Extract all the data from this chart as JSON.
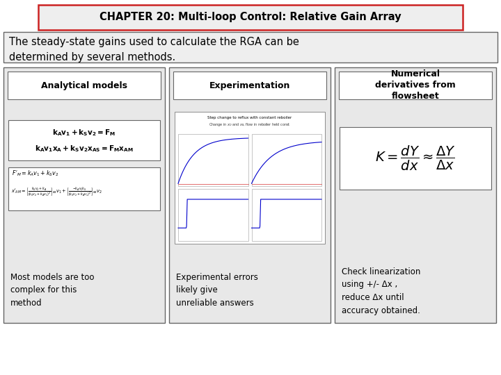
{
  "title": "CHAPTER 20: Multi-loop Control: Relative Gain Array",
  "subtitle": "The steady-state gains used to calculate the RGA can be\ndetermined by several methods.",
  "col1_header": "Analytical models",
  "col2_header": "Experimentation",
  "col3_header": "Numerical\nderivatives from\nflowsheet",
  "col3_eq": "$K = \\dfrac{dY}{dx} \\approx \\dfrac{\\Delta Y}{\\Delta x}$",
  "col1_footer": "Most models are too\ncomplex for this\nmethod",
  "col2_footer": "Experimental errors\nlikely give\nunreliable answers",
  "col3_footer": "Check linearization\nusing +/- Δx ,\nreduce Δx until\naccuracy obtained.",
  "bg_color": "#ffffff",
  "title_box_border": "#cc2222",
  "gray_border": "#666666",
  "title_bg": "#eeeeee",
  "subtitle_bg": "#eeeeee",
  "col_bg": "#e8e8e8",
  "inner_bg": "#ffffff"
}
